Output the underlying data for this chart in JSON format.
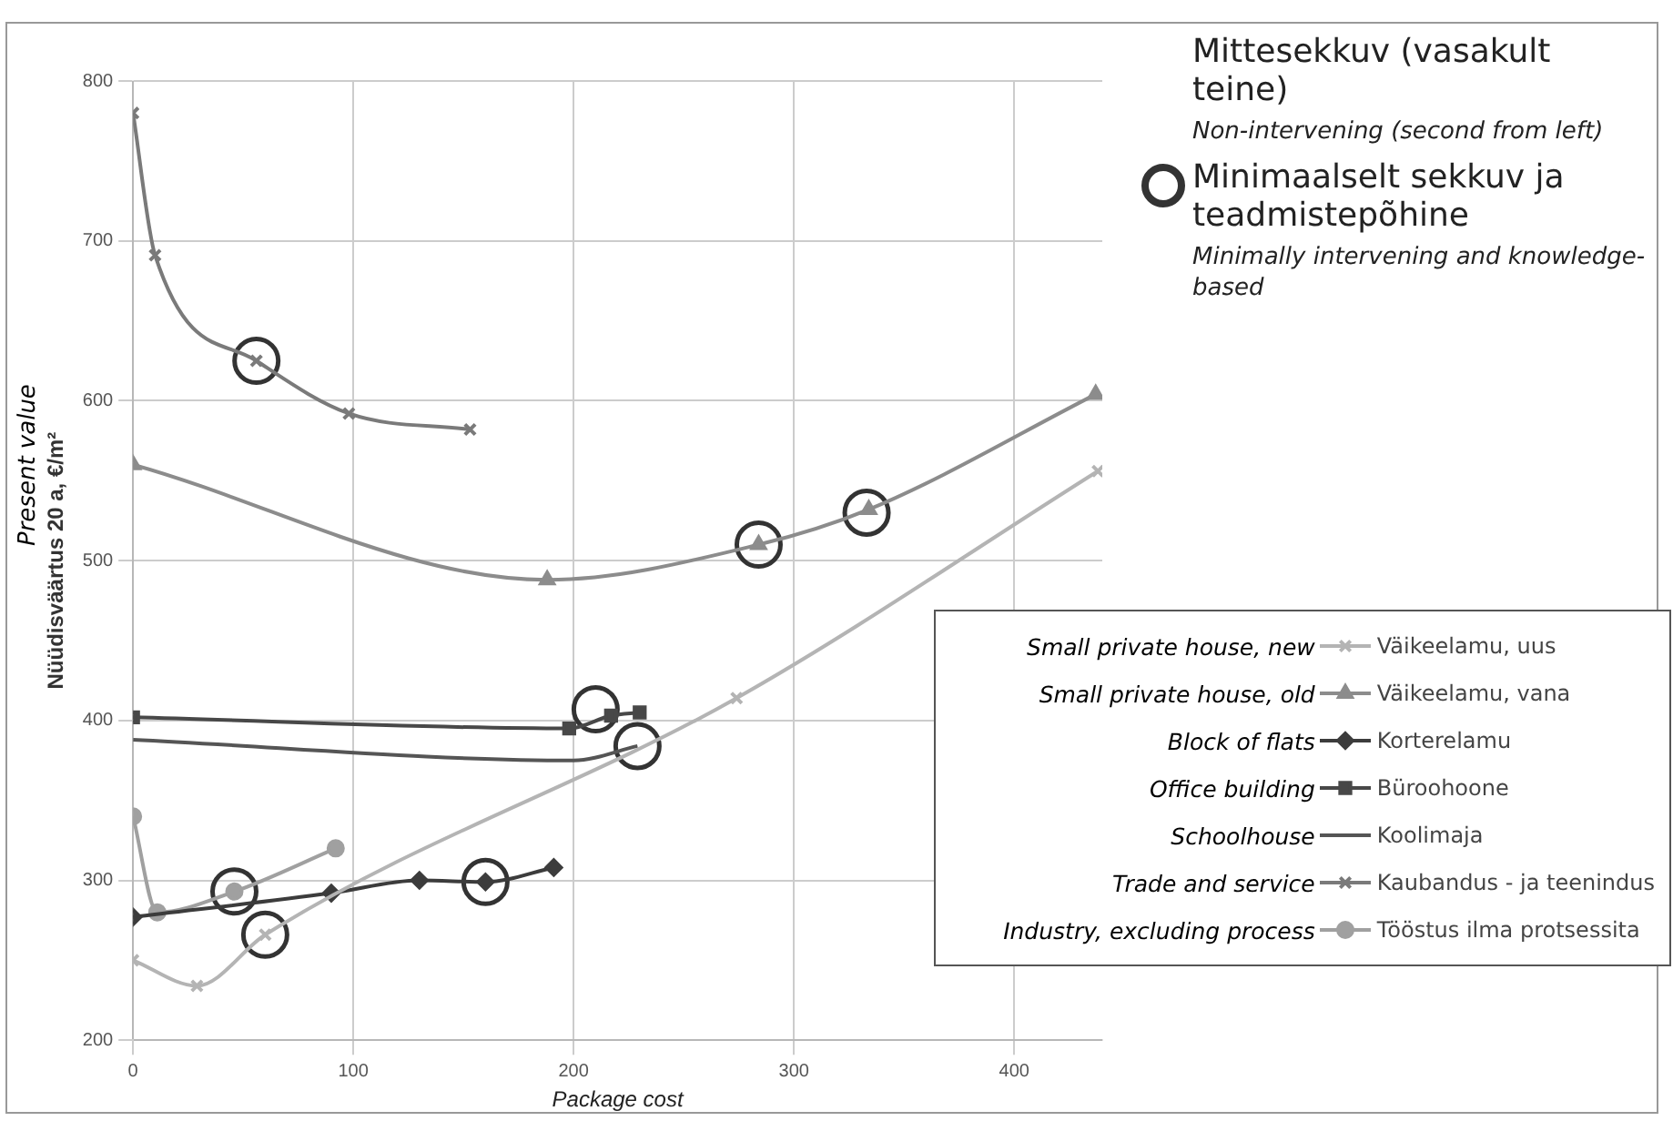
{
  "chart_data": {
    "type": "line",
    "xlabel": "Package cost",
    "ylabel": "Nüüdisväärtus 20 a, €/m²",
    "xlim": [
      0,
      440
    ],
    "xticks": [
      0,
      100,
      200,
      300,
      400
    ],
    "ylim": [
      200,
      800
    ],
    "yticks": [
      200,
      300,
      400,
      500,
      600,
      700,
      800
    ],
    "grid": true,
    "legend": "right",
    "series": [
      {
        "name": "Väikeelamu, uus",
        "color": "#b4b4b4",
        "marker": "cross",
        "x": [
          0,
          29,
          60,
          274,
          438
        ],
        "values": [
          250,
          234,
          266,
          414,
          556
        ]
      },
      {
        "name": "Väikeelamu, vana",
        "color": "#8c8c8c",
        "marker": "triangle",
        "x": [
          0,
          188,
          284,
          334,
          437
        ],
        "values": [
          560,
          488,
          510,
          532,
          604
        ]
      },
      {
        "name": "Korterelamu",
        "color": "#3c3c3c",
        "marker": "diamond",
        "x": [
          0,
          90,
          130,
          160,
          191
        ],
        "values": [
          277,
          292,
          300,
          299,
          308
        ]
      },
      {
        "name": "Büroohoone",
        "color": "#484848",
        "marker": "square",
        "x": [
          0,
          198,
          217,
          230
        ],
        "values": [
          402,
          395,
          403,
          405
        ]
      },
      {
        "name": "Koolimaja",
        "color": "#555555",
        "marker": "none",
        "x": [
          0,
          200,
          229
        ],
        "values": [
          388,
          375,
          384
        ]
      },
      {
        "name": "Kaubandus - ja teenindus",
        "color": "#7a7a7a",
        "marker": "cross",
        "x": [
          0,
          10,
          56,
          98,
          153
        ],
        "values": [
          780,
          691,
          625,
          592,
          582
        ]
      },
      {
        "name": "Tööstus ilma protsessita",
        "color": "#a0a0a0",
        "marker": "circle",
        "x": [
          0,
          11,
          46,
          92
        ],
        "values": [
          340,
          280,
          293,
          320
        ]
      },
      {
        "name": "Minimaalselt sekkuv ja teadmistepõhine",
        "type": "scatter",
        "color": "#333333",
        "marker": "circle",
        "x": [
          56,
          284,
          333,
          210,
          229,
          46,
          60,
          160
        ],
        "values": [
          625,
          510,
          530,
          407,
          384,
          293,
          266,
          299
        ]
      }
    ],
    "annotations": [
      "Present value",
      "Mittesekkuv (vasakult teine)",
      "Non-intervening (second from left)",
      "Minimally intervening and knowledge-based",
      "Small private house, new",
      "Small private house, old",
      "Block of flats",
      "Office building",
      "Schoolhouse",
      "Trade and service",
      "Industry, excluding process"
    ]
  }
}
